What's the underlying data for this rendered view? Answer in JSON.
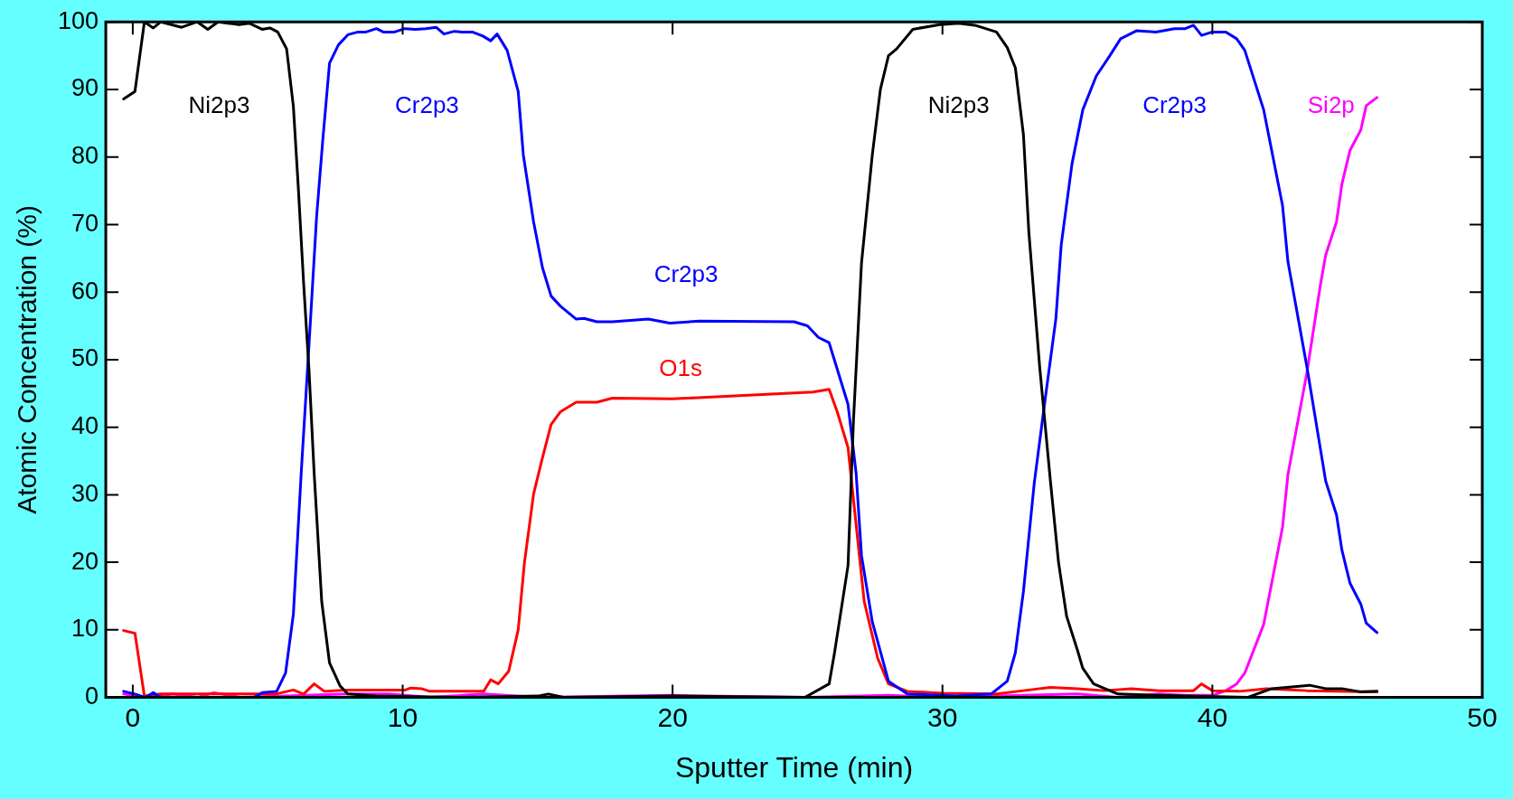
{
  "chart_data": {
    "type": "line",
    "xlabel": "Sputter Time (min)",
    "ylabel": "Atomic Concentration (%)",
    "xlim": [
      -1,
      50
    ],
    "xticks": [
      0,
      10,
      20,
      30,
      40,
      50
    ],
    "ylim": [
      0,
      100
    ],
    "yticks": [
      0,
      10,
      20,
      30,
      40,
      50,
      60,
      70,
      80,
      90,
      100
    ],
    "legend": false,
    "marker": "none",
    "line_style": "solid",
    "series": [
      {
        "name": "Ni2p3",
        "color": "#000000",
        "x": [
          -0.34,
          0.08,
          0.43,
          0.76,
          1.04,
          1.81,
          2.39,
          2.78,
          3.16,
          3.93,
          4.31,
          4.79,
          5.08,
          5.37,
          5.7,
          5.95,
          6.14,
          6.33,
          6.53,
          6.72,
          7.0,
          7.29,
          7.68,
          7.97,
          9,
          12,
          15,
          15.4,
          16,
          20,
          24.9,
          25.8,
          26.0,
          26.5,
          26.7,
          27.0,
          27.4,
          27.7,
          28.0,
          28.3,
          28.9,
          29.9,
          30.6,
          31.2,
          32.0,
          32.4,
          32.7,
          33.0,
          33.2,
          33.6,
          34.0,
          34.3,
          34.6,
          35.0,
          35.2,
          35.6,
          36.5,
          38,
          41.3,
          42.2,
          43.6,
          44.2,
          44.8,
          45.5,
          46.1
        ],
        "values": [
          88.6,
          89.7,
          100,
          99.1,
          100,
          99.2,
          100,
          98.9,
          100,
          99.6,
          99.8,
          98.9,
          99.1,
          98.5,
          96,
          87.5,
          75,
          61.3,
          48.4,
          33.2,
          14.2,
          5.1,
          1.7,
          0.5,
          0.2,
          0,
          0.2,
          0.5,
          0,
          0.2,
          0,
          2,
          6.6,
          19.5,
          40.8,
          64.3,
          80.3,
          90,
          95,
          96,
          98.9,
          99.6,
          99.8,
          99.5,
          98.5,
          96.2,
          93.2,
          83.3,
          68.9,
          49,
          32,
          20,
          12,
          7,
          4.3,
          2,
          0.5,
          0.3,
          0,
          1.3,
          1.8,
          1.3,
          1.3,
          0.8,
          0.9
        ]
      },
      {
        "name": "Cr2p3",
        "color": "#0000ff",
        "x": [
          -0.34,
          0.08,
          0.47,
          0.76,
          1.04,
          4.5,
          4.8,
          5.33,
          5.66,
          5.95,
          6.24,
          6.53,
          6.81,
          7.04,
          7.29,
          7.62,
          7.97,
          8.35,
          8.64,
          9.03,
          9.28,
          9.7,
          10.08,
          10.47,
          10.85,
          11.24,
          11.53,
          11.91,
          12.2,
          12.58,
          12.97,
          13.26,
          13.5,
          13.87,
          14.28,
          14.47,
          14.85,
          15.18,
          15.5,
          15.85,
          16.43,
          16.72,
          17.2,
          17.77,
          19.1,
          19.9,
          21.0,
          24.5,
          25.0,
          25.4,
          25.8,
          26.5,
          26.8,
          27.0,
          27.4,
          28.0,
          28.7,
          30.5,
          31.8,
          32.4,
          32.7,
          33.0,
          33.4,
          33.8,
          34.2,
          34.4,
          34.8,
          35.2,
          35.7,
          36.2,
          36.6,
          37.2,
          37.9,
          38.6,
          39.0,
          39.3,
          39.6,
          40.0,
          40.5,
          40.9,
          41.2,
          41.9,
          42.6,
          42.8,
          43.5,
          44.2,
          44.6,
          44.8,
          45.1,
          45.5,
          45.7,
          46.1
        ],
        "values": [
          0.9,
          0.5,
          0,
          0.7,
          0,
          0,
          0.7,
          0.9,
          3.6,
          12.3,
          33.2,
          52.2,
          71.1,
          82.5,
          93.9,
          96.6,
          98.1,
          98.5,
          98.5,
          99,
          98.5,
          98.5,
          99,
          98.9,
          99,
          99.2,
          98.2,
          98.6,
          98.5,
          98.5,
          97.9,
          97.2,
          98.2,
          95.8,
          89.7,
          80.3,
          70.4,
          63.6,
          59.4,
          57.9,
          56,
          56.1,
          55.6,
          55.6,
          56,
          55.4,
          55.7,
          55.6,
          55,
          53.3,
          52.5,
          43.4,
          33.2,
          21,
          11.2,
          2.4,
          0.5,
          0.2,
          0.5,
          2.4,
          6.6,
          15.7,
          31.7,
          44,
          56,
          67,
          79,
          87,
          92,
          95,
          97.5,
          98.7,
          98.5,
          99,
          99,
          99.5,
          98,
          98.5,
          98.5,
          97.5,
          95.8,
          87,
          72.8,
          64.5,
          49,
          32,
          27,
          21.8,
          16.9,
          13.8,
          11,
          9.6
        ]
      },
      {
        "name": "O1s",
        "color": "#ff0000",
        "x": [
          -0.34,
          0.08,
          0.43,
          1.04,
          5.3,
          5.95,
          6.33,
          6.72,
          7.1,
          7.87,
          10.1,
          10.3,
          10.7,
          11.0,
          13.0,
          13.26,
          13.54,
          13.93,
          14.28,
          14.51,
          14.85,
          15.18,
          15.5,
          15.85,
          16.43,
          17.2,
          17.77,
          20,
          25.2,
          25.8,
          26.1,
          26.5,
          26.8,
          27.1,
          27.6,
          28.0,
          28.7,
          30,
          32,
          33,
          34,
          35,
          36,
          37,
          38,
          39.3,
          39.6,
          40,
          41,
          42,
          43.5,
          46.1
        ],
        "values": [
          9.9,
          9.5,
          0.2,
          0.5,
          0.5,
          1.1,
          0.5,
          2,
          0.9,
          1.1,
          1.1,
          1.4,
          1.3,
          0.9,
          0.9,
          2.6,
          2,
          3.9,
          10,
          19.9,
          30.1,
          35.5,
          40.4,
          42.3,
          43.7,
          43.7,
          44.3,
          44.2,
          45.2,
          45.6,
          42.3,
          37,
          25.6,
          14.2,
          5.8,
          2,
          0.9,
          0.6,
          0.5,
          1.0,
          1.5,
          1.3,
          1.0,
          1.3,
          1.0,
          1.0,
          2,
          1.0,
          0.9,
          1.3,
          1.0,
          0.8
        ]
      },
      {
        "name": "Si2p",
        "color": "#ff00ff",
        "x": [
          -0.34,
          0.5,
          1.5,
          2.4,
          3,
          4,
          8,
          9.5,
          11,
          13,
          15,
          20,
          25,
          28,
          30,
          35,
          36.5,
          38,
          39,
          40,
          40.5,
          40.9,
          41.2,
          41.9,
          42.6,
          42.8,
          43.5,
          44.0,
          44.2,
          44.6,
          44.8,
          45.1,
          45.5,
          45.7,
          46.1
        ],
        "values": [
          0.5,
          0,
          0.5,
          0,
          0.7,
          0,
          0.5,
          0.5,
          0,
          0.5,
          0,
          0.3,
          0,
          0.3,
          0,
          0.5,
          0,
          0.5,
          0.3,
          0.3,
          1,
          2,
          3.6,
          10.8,
          25.2,
          33,
          48,
          61,
          65.5,
          70.4,
          76,
          81,
          84,
          87.6,
          88.8
        ]
      }
    ],
    "annotations": [
      "Cr2p3",
      "Ni2p3",
      "Cr2p3"
    ]
  }
}
